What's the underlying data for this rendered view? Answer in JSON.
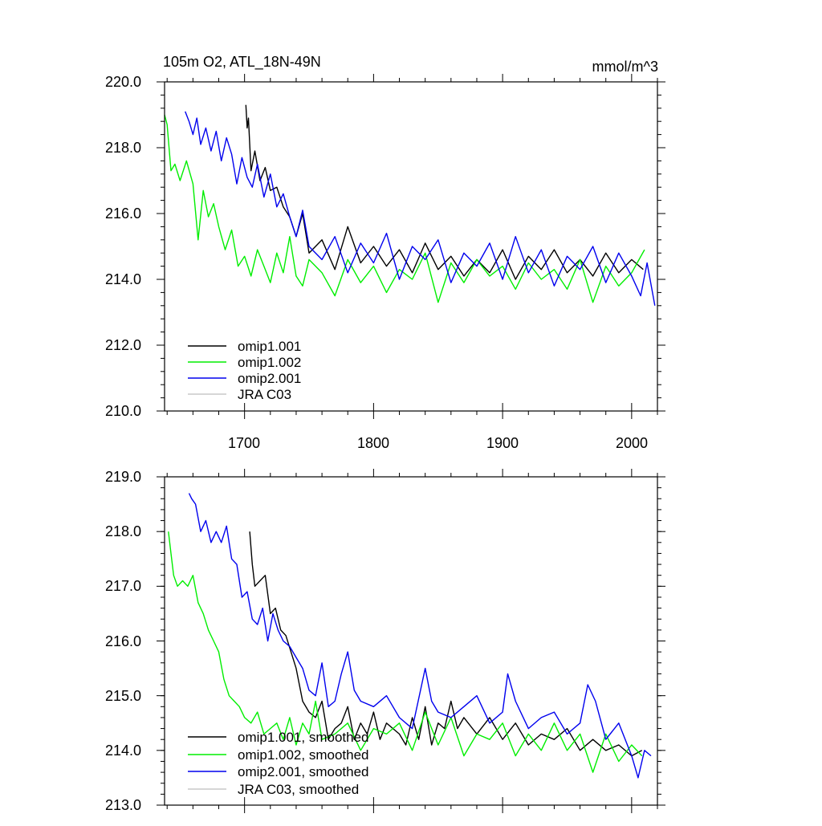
{
  "chart_data": [
    {
      "type": "line",
      "title": "105m O2, ATL_18N-49N",
      "units": "mmol/m^3",
      "xlabel": "",
      "ylabel": "",
      "xlim": [
        1638,
        2020
      ],
      "ylim": [
        210,
        220
      ],
      "xticks": [
        1700,
        1800,
        1900,
        2000
      ],
      "xtick_labels": [
        "1700",
        "1800",
        "1900",
        "2000"
      ],
      "yticks": [
        210,
        212,
        214,
        216,
        218,
        220
      ],
      "ytick_labels": [
        "210.0",
        "212.0",
        "214.0",
        "216.0",
        "218.0",
        "220.0"
      ],
      "legend_position": "bottom-left",
      "series": [
        {
          "name": "omip1.001",
          "color": "#000000",
          "x": [
            1701,
            1702,
            1703,
            1705,
            1708,
            1712,
            1716,
            1720,
            1725,
            1730,
            1735,
            1740,
            1745,
            1750,
            1760,
            1770,
            1780,
            1790,
            1800,
            1810,
            1820,
            1830,
            1840,
            1850,
            1860,
            1870,
            1880,
            1890,
            1900,
            1910,
            1920,
            1930,
            1940,
            1950,
            1960,
            1970,
            1980,
            1990,
            2000,
            2009
          ],
          "y": [
            219.3,
            218.6,
            218.9,
            217.3,
            217.9,
            217.0,
            217.4,
            216.7,
            216.8,
            216.2,
            215.9,
            215.3,
            216.0,
            214.8,
            215.2,
            214.3,
            215.6,
            214.5,
            215.0,
            214.4,
            214.9,
            214.2,
            215.1,
            214.3,
            214.7,
            214.1,
            214.6,
            214.2,
            214.9,
            214.0,
            214.7,
            214.3,
            214.9,
            214.2,
            214.6,
            214.1,
            214.8,
            214.2,
            214.6,
            214.3
          ]
        },
        {
          "name": "omip1.002",
          "color": "#00ee00",
          "x": [
            1638,
            1640,
            1643,
            1646,
            1650,
            1655,
            1660,
            1664,
            1668,
            1672,
            1676,
            1680,
            1685,
            1690,
            1695,
            1700,
            1705,
            1710,
            1715,
            1720,
            1725,
            1730,
            1735,
            1740,
            1745,
            1750,
            1760,
            1770,
            1780,
            1790,
            1800,
            1810,
            1820,
            1830,
            1840,
            1850,
            1860,
            1870,
            1880,
            1890,
            1900,
            1910,
            1920,
            1930,
            1940,
            1950,
            1960,
            1970,
            1980,
            1990,
            2000,
            2010
          ],
          "y": [
            219.0,
            218.7,
            217.3,
            217.5,
            217.0,
            217.6,
            216.9,
            215.2,
            216.7,
            215.9,
            216.3,
            215.6,
            214.9,
            215.5,
            214.4,
            214.7,
            214.1,
            214.9,
            214.4,
            213.9,
            214.8,
            214.2,
            215.3,
            214.1,
            213.8,
            214.6,
            214.2,
            213.5,
            214.6,
            213.9,
            214.4,
            213.6,
            214.3,
            214.0,
            214.8,
            213.3,
            214.5,
            213.9,
            214.6,
            214.1,
            214.4,
            213.7,
            214.5,
            214.0,
            214.3,
            213.7,
            214.6,
            213.3,
            214.4,
            213.8,
            214.2,
            214.9
          ]
        },
        {
          "name": "omip2.001",
          "color": "#0000ee",
          "x": [
            1654,
            1657,
            1660,
            1663,
            1666,
            1670,
            1674,
            1678,
            1682,
            1686,
            1690,
            1694,
            1698,
            1702,
            1706,
            1710,
            1715,
            1720,
            1725,
            1730,
            1735,
            1740,
            1745,
            1750,
            1760,
            1770,
            1780,
            1790,
            1800,
            1810,
            1820,
            1830,
            1840,
            1850,
            1860,
            1870,
            1880,
            1890,
            1900,
            1910,
            1920,
            1930,
            1940,
            1950,
            1960,
            1970,
            1980,
            1990,
            2000,
            2007,
            2012,
            2018
          ],
          "y": [
            219.1,
            218.8,
            218.4,
            218.9,
            218.1,
            218.6,
            217.9,
            218.5,
            217.6,
            218.3,
            217.8,
            216.9,
            217.7,
            217.1,
            216.8,
            217.5,
            216.5,
            217.2,
            216.2,
            216.6,
            215.9,
            215.3,
            216.1,
            215.0,
            214.6,
            215.3,
            214.2,
            215.1,
            214.5,
            215.4,
            214.0,
            215.0,
            214.6,
            215.2,
            213.9,
            214.8,
            214.4,
            215.1,
            214.0,
            215.3,
            214.2,
            214.9,
            213.8,
            214.7,
            214.3,
            215.0,
            213.9,
            214.8,
            214.1,
            213.5,
            214.5,
            213.2
          ]
        },
        {
          "name": "JRA C03",
          "color": "#c8c8c8",
          "x": [],
          "y": []
        }
      ]
    },
    {
      "type": "line",
      "title": "",
      "xlim": [
        1638,
        2020
      ],
      "ylim": [
        213,
        219
      ],
      "xticks": [
        1700,
        1800,
        1900,
        2000
      ],
      "yticks": [
        213,
        214,
        215,
        216,
        217,
        218,
        219
      ],
      "ytick_labels": [
        "213.0",
        "214.0",
        "215.0",
        "216.0",
        "217.0",
        "218.0",
        "219.0"
      ],
      "legend_position": "bottom-left",
      "series": [
        {
          "name": "omip1.001, smoothed",
          "color": "#000000",
          "x": [
            1704,
            1706,
            1708,
            1712,
            1716,
            1720,
            1724,
            1728,
            1732,
            1736,
            1740,
            1745,
            1750,
            1755,
            1760,
            1765,
            1770,
            1775,
            1780,
            1785,
            1790,
            1795,
            1800,
            1805,
            1810,
            1815,
            1820,
            1825,
            1830,
            1835,
            1840,
            1845,
            1850,
            1855,
            1860,
            1865,
            1870,
            1880,
            1890,
            1900,
            1910,
            1920,
            1930,
            1940,
            1950,
            1960,
            1970,
            1980,
            1990,
            2000,
            2008
          ],
          "y": [
            218.0,
            217.4,
            217.0,
            217.1,
            217.2,
            216.5,
            216.6,
            216.2,
            216.1,
            215.8,
            215.5,
            214.9,
            214.7,
            214.6,
            214.9,
            214.2,
            214.4,
            214.5,
            214.8,
            214.2,
            214.5,
            214.3,
            214.7,
            214.2,
            214.5,
            214.4,
            214.3,
            214.1,
            214.6,
            214.2,
            214.8,
            214.1,
            214.5,
            214.4,
            214.9,
            214.4,
            214.6,
            214.3,
            214.6,
            214.2,
            214.5,
            214.1,
            214.3,
            214.2,
            214.4,
            214.0,
            214.2,
            214.0,
            214.1,
            213.9,
            214.0
          ]
        },
        {
          "name": "omip1.002, smoothed",
          "color": "#00ee00",
          "x": [
            1641,
            1643,
            1645,
            1648,
            1652,
            1656,
            1660,
            1664,
            1668,
            1672,
            1676,
            1680,
            1684,
            1688,
            1692,
            1696,
            1700,
            1705,
            1710,
            1715,
            1720,
            1725,
            1730,
            1735,
            1740,
            1745,
            1750,
            1755,
            1760,
            1770,
            1780,
            1790,
            1800,
            1810,
            1820,
            1830,
            1840,
            1850,
            1860,
            1870,
            1880,
            1890,
            1900,
            1910,
            1920,
            1930,
            1940,
            1950,
            1960,
            1970,
            1980,
            1990,
            2000,
            2008
          ],
          "y": [
            218.0,
            217.6,
            217.2,
            217.0,
            217.1,
            217.0,
            217.2,
            216.7,
            216.5,
            216.2,
            216.0,
            215.8,
            215.3,
            215.0,
            214.9,
            214.8,
            214.6,
            214.5,
            214.7,
            214.3,
            214.4,
            214.5,
            214.2,
            214.6,
            214.1,
            214.5,
            214.3,
            214.9,
            214.2,
            214.3,
            214.5,
            214.0,
            214.4,
            214.3,
            214.5,
            214.0,
            214.7,
            214.1,
            214.6,
            213.9,
            214.3,
            214.2,
            214.5,
            213.9,
            214.3,
            214.0,
            214.5,
            214.0,
            214.3,
            213.6,
            214.3,
            213.8,
            214.1,
            213.9
          ]
        },
        {
          "name": "omip2.001, smoothed",
          "color": "#0000ee",
          "x": [
            1657,
            1659,
            1662,
            1666,
            1670,
            1674,
            1678,
            1682,
            1686,
            1690,
            1694,
            1698,
            1702,
            1706,
            1710,
            1714,
            1718,
            1722,
            1726,
            1730,
            1735,
            1740,
            1745,
            1750,
            1755,
            1760,
            1765,
            1770,
            1775,
            1780,
            1785,
            1790,
            1800,
            1810,
            1820,
            1830,
            1840,
            1845,
            1850,
            1860,
            1870,
            1880,
            1890,
            1900,
            1904,
            1910,
            1920,
            1930,
            1940,
            1950,
            1960,
            1966,
            1972,
            1980,
            1990,
            2000,
            2005,
            2010,
            2015
          ],
          "y": [
            218.7,
            218.6,
            218.5,
            218.0,
            218.2,
            217.8,
            218.0,
            217.8,
            218.1,
            217.5,
            217.4,
            216.8,
            216.9,
            216.4,
            216.3,
            216.6,
            216.0,
            216.5,
            216.2,
            216.0,
            215.9,
            215.7,
            215.5,
            215.1,
            215.0,
            215.6,
            214.8,
            214.9,
            215.4,
            215.8,
            215.1,
            214.9,
            214.8,
            215.0,
            214.6,
            214.4,
            215.5,
            214.9,
            214.7,
            214.6,
            214.8,
            215.0,
            214.5,
            214.7,
            215.4,
            214.9,
            214.4,
            214.6,
            214.7,
            214.3,
            214.5,
            215.2,
            214.9,
            214.2,
            214.5,
            213.9,
            213.5,
            214.0,
            213.9
          ]
        },
        {
          "name": "JRA C03, smoothed",
          "color": "#c8c8c8",
          "x": [],
          "y": []
        }
      ]
    }
  ]
}
